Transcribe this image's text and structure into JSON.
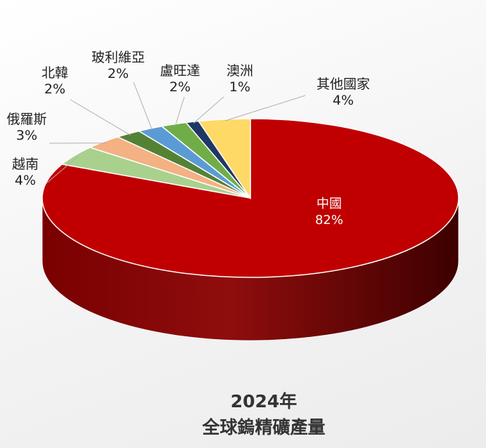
{
  "chart_data": {
    "type": "pie",
    "style": "3d",
    "title_lines": [
      "2024年",
      "全球鎢精礦產量"
    ],
    "slices": [
      {
        "label": "中國",
        "value_label": "82%",
        "value": 82,
        "color": "#c00000"
      },
      {
        "label": "越南",
        "value_label": "4%",
        "value": 4,
        "color": "#a9d18e"
      },
      {
        "label": "俄羅斯",
        "value_label": "3%",
        "value": 3,
        "color": "#f4b183"
      },
      {
        "label": "北韓",
        "value_label": "2%",
        "value": 2,
        "color": "#548235"
      },
      {
        "label": "玻利維亞",
        "value_label": "2%",
        "value": 2,
        "color": "#5b9bd5"
      },
      {
        "label": "盧旺達",
        "value_label": "2%",
        "value": 2,
        "color": "#70ad47"
      },
      {
        "label": "澳洲",
        "value_label": "1%",
        "value": 1,
        "color": "#1f3864"
      },
      {
        "label": "其他國家",
        "value_label": "4%",
        "value": 4,
        "color": "#ffd966"
      }
    ]
  }
}
